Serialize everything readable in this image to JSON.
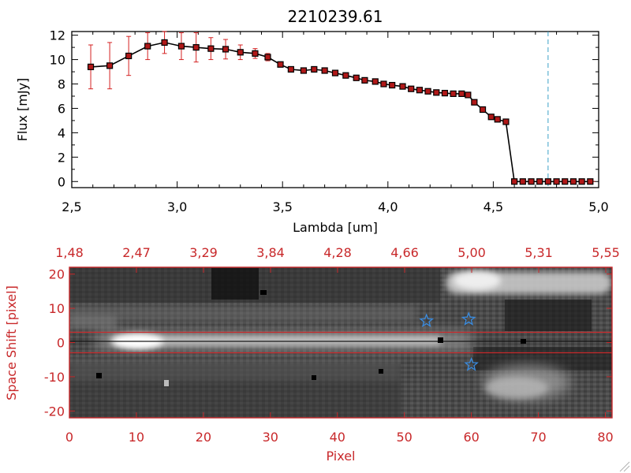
{
  "title": "2210239.61",
  "colors": {
    "axis_red": "#c8282a",
    "errorbar": "#d42020",
    "marker_fill": "#b01818",
    "line": "#000000",
    "dashed_marker": "#3aa0c8",
    "star": "#3a8ce0"
  },
  "chart_data": [
    {
      "type": "line",
      "title": "2210239.61",
      "xlabel": "Lambda [um]",
      "ylabel": "Flux [mJy]",
      "xlim": [
        2.5,
        5.0
      ],
      "ylim": [
        -0.5,
        12.3
      ],
      "xticks": [
        "2.5",
        "3.0",
        "3.5",
        "4.0",
        "4.5",
        "5.0"
      ],
      "yticks": [
        "0",
        "2",
        "4",
        "6",
        "8",
        "10",
        "12"
      ],
      "grid": false,
      "reference_line": {
        "x": 4.76,
        "style": "dashed"
      },
      "series": [
        {
          "x": [
            2.59,
            2.68,
            2.77,
            2.86,
            2.94,
            3.02,
            3.09,
            3.16,
            3.23,
            3.3,
            3.37,
            3.43,
            3.49,
            3.54,
            3.6,
            3.65,
            3.7,
            3.75,
            3.8,
            3.85,
            3.89,
            3.94,
            3.98,
            4.02,
            4.07,
            4.11,
            4.15,
            4.19,
            4.23,
            4.27,
            4.31,
            4.35,
            4.38,
            4.41,
            4.45,
            4.49,
            4.52,
            4.56,
            4.6,
            4.64,
            4.68,
            4.72,
            4.76,
            4.8,
            4.84,
            4.88,
            4.92,
            4.96
          ],
          "y": [
            9.4,
            9.5,
            10.3,
            11.1,
            11.4,
            11.1,
            11.0,
            10.9,
            10.85,
            10.6,
            10.5,
            10.2,
            9.6,
            9.2,
            9.1,
            9.2,
            9.1,
            8.9,
            8.7,
            8.5,
            8.3,
            8.2,
            8.0,
            7.9,
            7.8,
            7.6,
            7.5,
            7.4,
            7.3,
            7.25,
            7.2,
            7.2,
            7.1,
            6.5,
            5.9,
            5.3,
            5.1,
            4.9,
            0,
            0,
            0,
            0,
            0,
            0,
            0,
            0,
            0,
            0
          ],
          "yerr": [
            1.8,
            1.9,
            1.6,
            1.1,
            0.9,
            1.1,
            1.2,
            0.9,
            0.8,
            0.6,
            0.4,
            0.3,
            0.15,
            0.1,
            0.1,
            0.1,
            0.1,
            0.1,
            0.1,
            0.1,
            0.1,
            0.1,
            0.1,
            0.1,
            0.1,
            0.1,
            0.1,
            0.1,
            0.1,
            0.1,
            0.1,
            0.1,
            0.1,
            0.2,
            0.2,
            0.2,
            0.2,
            0.2,
            0,
            0,
            0,
            0,
            0,
            0,
            0,
            0,
            0,
            0
          ]
        }
      ]
    },
    {
      "type": "heatmap",
      "xlabel": "Pixel",
      "ylabel": "Space Shift [pixel]",
      "xlim": [
        0,
        81
      ],
      "ylim": [
        -22,
        22
      ],
      "xticks": [
        "0",
        "10",
        "20",
        "30",
        "40",
        "50",
        "60",
        "70",
        "80"
      ],
      "yticks": [
        "-20",
        "-10",
        "0",
        "10",
        "20"
      ],
      "top_ticks": [
        "1.48",
        "2.47",
        "3.29",
        "3.84",
        "4.28",
        "4.66",
        "5.00",
        "5.31",
        "5.55"
      ],
      "aperture_lines": [
        3,
        -3
      ],
      "stars": [
        {
          "x": 53.3,
          "y": 6.3
        },
        {
          "x": 59.6,
          "y": 6.8
        },
        {
          "x": 60.0,
          "y": -6.5
        }
      ]
    }
  ]
}
